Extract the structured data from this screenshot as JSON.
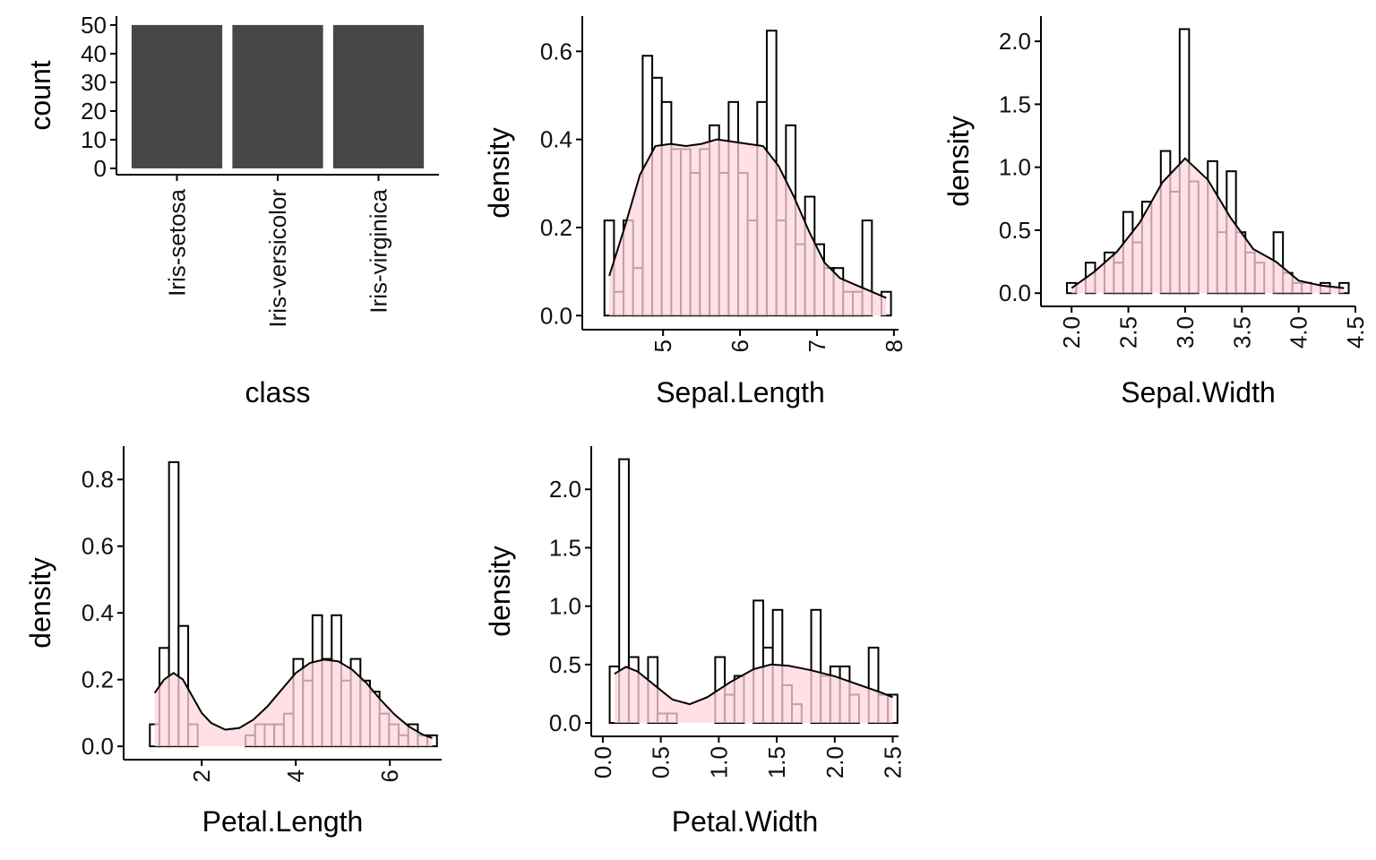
{
  "chart_data": [
    {
      "type": "bar",
      "xlabel": "class",
      "ylabel": "count",
      "categories": [
        "Iris-setosa",
        "Iris-versicolor",
        "Iris-virginica"
      ],
      "values": [
        50,
        50,
        50
      ],
      "color": "#474747",
      "ylim": [
        -2.2,
        53.1
      ],
      "yticks": [
        0,
        10,
        20,
        30,
        40,
        50
      ]
    },
    {
      "type": "histogram",
      "xlabel": "Sepal.Length",
      "ylabel": "density",
      "bins": [
        4.238,
        4.362,
        4.486,
        4.61,
        4.735,
        4.859,
        4.983,
        5.107,
        5.231,
        5.355,
        5.479,
        5.604,
        5.728,
        5.852,
        5.976,
        6.1,
        6.224,
        6.348,
        6.472,
        6.597,
        6.721,
        6.845,
        6.969,
        7.093,
        7.217,
        7.341,
        7.466,
        7.59,
        7.714,
        7.838,
        7.962
      ],
      "values": [
        0.216,
        0.054,
        0.216,
        0.108,
        0.59,
        0.54,
        0.485,
        0.378,
        0.378,
        0.324,
        0.378,
        0.432,
        0.324,
        0.485,
        0.324,
        0.216,
        0.485,
        0.647,
        0.216,
        0.432,
        0.162,
        0.27,
        0.162,
        0.108,
        0.108,
        0.054,
        0.054,
        0.216,
        0,
        0.054
      ],
      "color": "#ffffff",
      "density": {
        "x": [
          4.3,
          4.5,
          4.7,
          4.9,
          5.1,
          5.3,
          5.5,
          5.7,
          5.9,
          6.1,
          6.3,
          6.5,
          6.7,
          6.9,
          7.1,
          7.3,
          7.5,
          7.7,
          7.9
        ],
        "y": [
          0.09,
          0.2,
          0.32,
          0.385,
          0.39,
          0.385,
          0.39,
          0.4,
          0.395,
          0.39,
          0.385,
          0.34,
          0.27,
          0.19,
          0.12,
          0.085,
          0.07,
          0.055,
          0.04
        ],
        "color": "#ffd6dc"
      },
      "xlim": [
        3.95,
        8.06
      ],
      "xticks": [
        5,
        6,
        7,
        8
      ],
      "ylim": [
        -0.032,
        0.68
      ],
      "yticks": [
        {
          "value": 0,
          "label": "0.0"
        },
        0.2,
        0.4,
        0.6
      ]
    },
    {
      "type": "histogram",
      "xlabel": "Sepal.Width",
      "ylabel": "density",
      "bins": [
        1.959,
        2.041,
        2.124,
        2.207,
        2.29,
        2.372,
        2.455,
        2.538,
        2.621,
        2.703,
        2.786,
        2.869,
        2.952,
        3.035,
        3.117,
        3.2,
        3.283,
        3.366,
        3.448,
        3.531,
        3.614,
        3.697,
        3.779,
        3.862,
        3.945,
        4.028,
        4.11,
        4.193,
        4.276,
        4.359,
        4.441
      ],
      "values": [
        0.081,
        0,
        0.242,
        0,
        0.323,
        0.242,
        0.645,
        0.403,
        0.726,
        0,
        1.129,
        0.806,
        2.097,
        0.887,
        0,
        1.048,
        0.484,
        0.968,
        0.484,
        0.323,
        0.242,
        0,
        0.484,
        0.161,
        0.081,
        0.081,
        0,
        0.081,
        0,
        0.081
      ],
      "color": "#ffffff",
      "density": {
        "x": [
          2.0,
          2.2,
          2.4,
          2.6,
          2.8,
          3.0,
          3.2,
          3.4,
          3.6,
          3.8,
          4.0,
          4.2,
          4.4
        ],
        "y": [
          0.04,
          0.17,
          0.33,
          0.56,
          0.88,
          1.07,
          0.9,
          0.6,
          0.35,
          0.25,
          0.1,
          0.06,
          0.04
        ],
        "color": "#ffd6dc"
      },
      "xlim": [
        1.73,
        4.5
      ],
      "xticks": [
        {
          "value": 2,
          "label": "2.0"
        },
        2.5,
        {
          "value": 3,
          "label": "3.0"
        },
        3.5,
        {
          "value": 4,
          "label": "4.0"
        },
        4.5
      ],
      "ylim": [
        -0.105,
        2.2
      ],
      "yticks": [
        {
          "value": 0,
          "label": "0.0"
        },
        0.5,
        {
          "value": 1,
          "label": "1.0"
        },
        1.5,
        {
          "value": 2,
          "label": "2.0"
        }
      ]
    },
    {
      "type": "histogram",
      "xlabel": "Petal.Length",
      "ylabel": "density",
      "bins": [
        0.898,
        1.102,
        1.305,
        1.508,
        1.712,
        1.915,
        2.119,
        2.322,
        2.525,
        2.729,
        2.932,
        3.136,
        3.339,
        3.542,
        3.746,
        3.949,
        4.153,
        4.356,
        4.559,
        4.763,
        4.966,
        5.169,
        5.373,
        5.576,
        5.78,
        5.983,
        6.186,
        6.39,
        6.593,
        6.797,
        7.0
      ],
      "values": [
        0.066,
        0.295,
        0.852,
        0.361,
        0.066,
        0,
        0,
        0,
        0,
        0,
        0.033,
        0.066,
        0.066,
        0.066,
        0.098,
        0.262,
        0.197,
        0.393,
        0.262,
        0.393,
        0.197,
        0.262,
        0.197,
        0.164,
        0.098,
        0.066,
        0.033,
        0.066,
        0.033,
        0.033
      ],
      "color": "#ffffff",
      "density": {
        "x": [
          1.0,
          1.2,
          1.4,
          1.6,
          1.8,
          2.0,
          2.2,
          2.5,
          2.8,
          3.1,
          3.4,
          3.7,
          4.0,
          4.3,
          4.6,
          4.9,
          5.2,
          5.5,
          5.8,
          6.1,
          6.4,
          6.7,
          6.9
        ],
        "y": [
          0.16,
          0.2,
          0.22,
          0.2,
          0.15,
          0.1,
          0.07,
          0.05,
          0.055,
          0.08,
          0.12,
          0.17,
          0.22,
          0.25,
          0.26,
          0.255,
          0.23,
          0.19,
          0.14,
          0.095,
          0.06,
          0.035,
          0.025
        ],
        "color": "#ffd6dc"
      },
      "xlim": [
        0.34,
        7.1
      ],
      "xticks": [
        2,
        4,
        6
      ],
      "ylim": [
        -0.04,
        0.9
      ],
      "yticks": [
        {
          "value": 0,
          "label": "0.0"
        },
        0.2,
        0.4,
        0.6,
        0.8
      ]
    },
    {
      "type": "histogram",
      "xlabel": "Petal.Width",
      "ylabel": "density",
      "bins": [
        0.059,
        0.141,
        0.224,
        0.307,
        0.39,
        0.472,
        0.555,
        0.638,
        0.721,
        0.803,
        0.886,
        0.969,
        1.052,
        1.135,
        1.217,
        1.3,
        1.383,
        1.466,
        1.548,
        1.631,
        1.714,
        1.797,
        1.879,
        1.962,
        2.045,
        2.128,
        2.21,
        2.293,
        2.376,
        2.459,
        2.541
      ],
      "values": [
        0.484,
        2.258,
        0.564,
        0,
        0.564,
        0.081,
        0.081,
        0,
        0,
        0,
        0,
        0.564,
        0.242,
        0.403,
        0,
        1.048,
        0.645,
        0.968,
        0.323,
        0.161,
        0,
        0.968,
        0.403,
        0.484,
        0.484,
        0.242,
        0,
        0.645,
        0.242,
        0.242
      ],
      "color": "#ffffff",
      "density": {
        "x": [
          0.1,
          0.2,
          0.3,
          0.45,
          0.6,
          0.75,
          0.9,
          1.1,
          1.3,
          1.45,
          1.6,
          1.8,
          2.0,
          2.2,
          2.4,
          2.5
        ],
        "y": [
          0.42,
          0.48,
          0.44,
          0.32,
          0.2,
          0.16,
          0.22,
          0.35,
          0.46,
          0.5,
          0.49,
          0.45,
          0.4,
          0.33,
          0.26,
          0.22
        ],
        "color": "#ffd6dc"
      },
      "xlim": [
        -0.1,
        2.55
      ],
      "xticks": [
        {
          "value": 0,
          "label": "0.0"
        },
        0.5,
        {
          "value": 1,
          "label": "1.0"
        },
        1.5,
        {
          "value": 2,
          "label": "2.0"
        },
        2.5
      ],
      "ylim": [
        -0.115,
        2.37
      ],
      "yticks": [
        {
          "value": 0,
          "label": "0.0"
        },
        0.5,
        {
          "value": 1,
          "label": "1.0"
        },
        1.5,
        {
          "value": 2,
          "label": "2.0"
        }
      ]
    }
  ]
}
